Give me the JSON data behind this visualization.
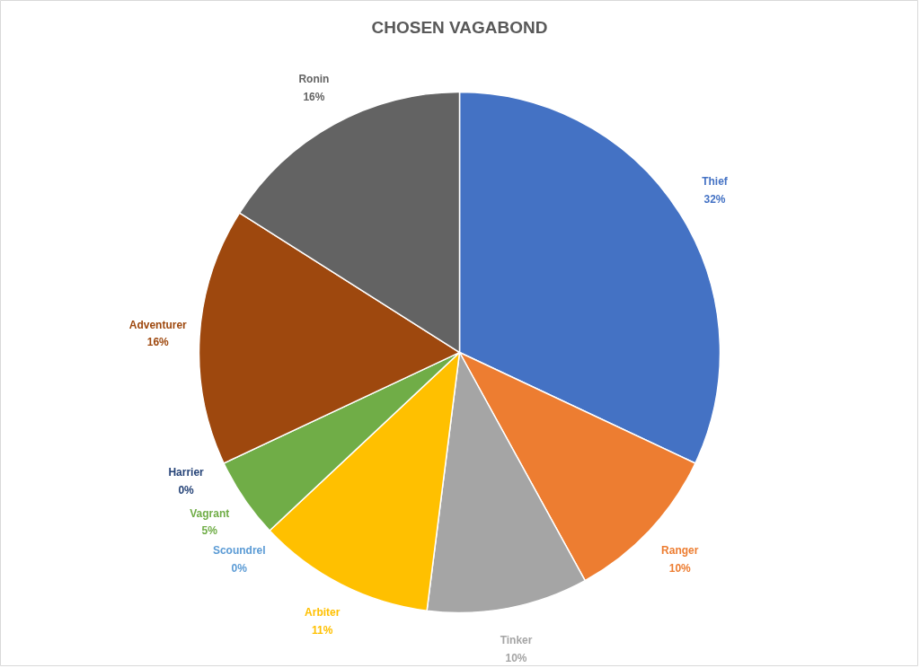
{
  "chart_data": {
    "type": "pie",
    "title": "CHOSEN VAGABOND",
    "categories": [
      "Thief",
      "Ranger",
      "Tinker",
      "Arbiter",
      "Scoundrel",
      "Vagrant",
      "Harrier",
      "Adventurer",
      "Ronin"
    ],
    "values": [
      32,
      10,
      10,
      11,
      0,
      5,
      0,
      16,
      16
    ],
    "value_labels": [
      "32%",
      "10%",
      "10%",
      "11%",
      "0%",
      "5%",
      "0%",
      "16%",
      "16%"
    ],
    "colors": [
      "#4472c4",
      "#ed7d31",
      "#a5a5a5",
      "#ffc000",
      "#5b9bd5",
      "#70ad47",
      "#264478",
      "#9e480e",
      "#636363"
    ]
  }
}
